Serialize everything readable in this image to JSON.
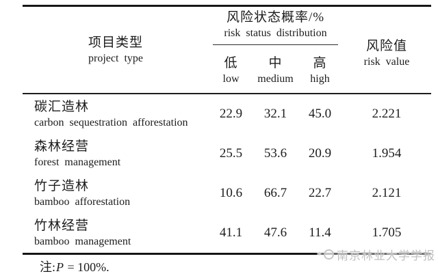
{
  "table": {
    "header": {
      "project_type_zh": "项目类型",
      "project_type_en": "project type",
      "spanner_zh": "风险状态概率/%",
      "spanner_en": "risk status distribution",
      "subcols": [
        {
          "zh": "低",
          "en": "low"
        },
        {
          "zh": "中",
          "en": "medium"
        },
        {
          "zh": "高",
          "en": "high"
        }
      ],
      "risk_value_zh": "风险值",
      "risk_value_en": "risk value"
    },
    "rows": [
      {
        "zh": "碳汇造林",
        "en": "carbon sequestration afforestation",
        "low": "22.9",
        "medium": "32.1",
        "high": "45.0",
        "risk_value": "2.221"
      },
      {
        "zh": "森林经营",
        "en": "forest management",
        "low": "25.5",
        "medium": "53.6",
        "high": "20.9",
        "risk_value": "1.954"
      },
      {
        "zh": "竹子造林",
        "en": "bamboo afforestation",
        "low": "10.6",
        "medium": "66.7",
        "high": "22.7",
        "risk_value": "2.121"
      },
      {
        "zh": "竹林经营",
        "en": "bamboo management",
        "low": "41.1",
        "medium": "47.6",
        "high": "11.4",
        "risk_value": "1.705"
      }
    ],
    "note": {
      "prefix": "注:",
      "var": "P",
      "rest": " = 100%."
    }
  },
  "watermark": {
    "text": "南京林业大学学报"
  },
  "colors": {
    "text": "#1c1c1c",
    "rule": "#161616",
    "watermark": "#c0c0c0",
    "background": "#ffffff"
  }
}
